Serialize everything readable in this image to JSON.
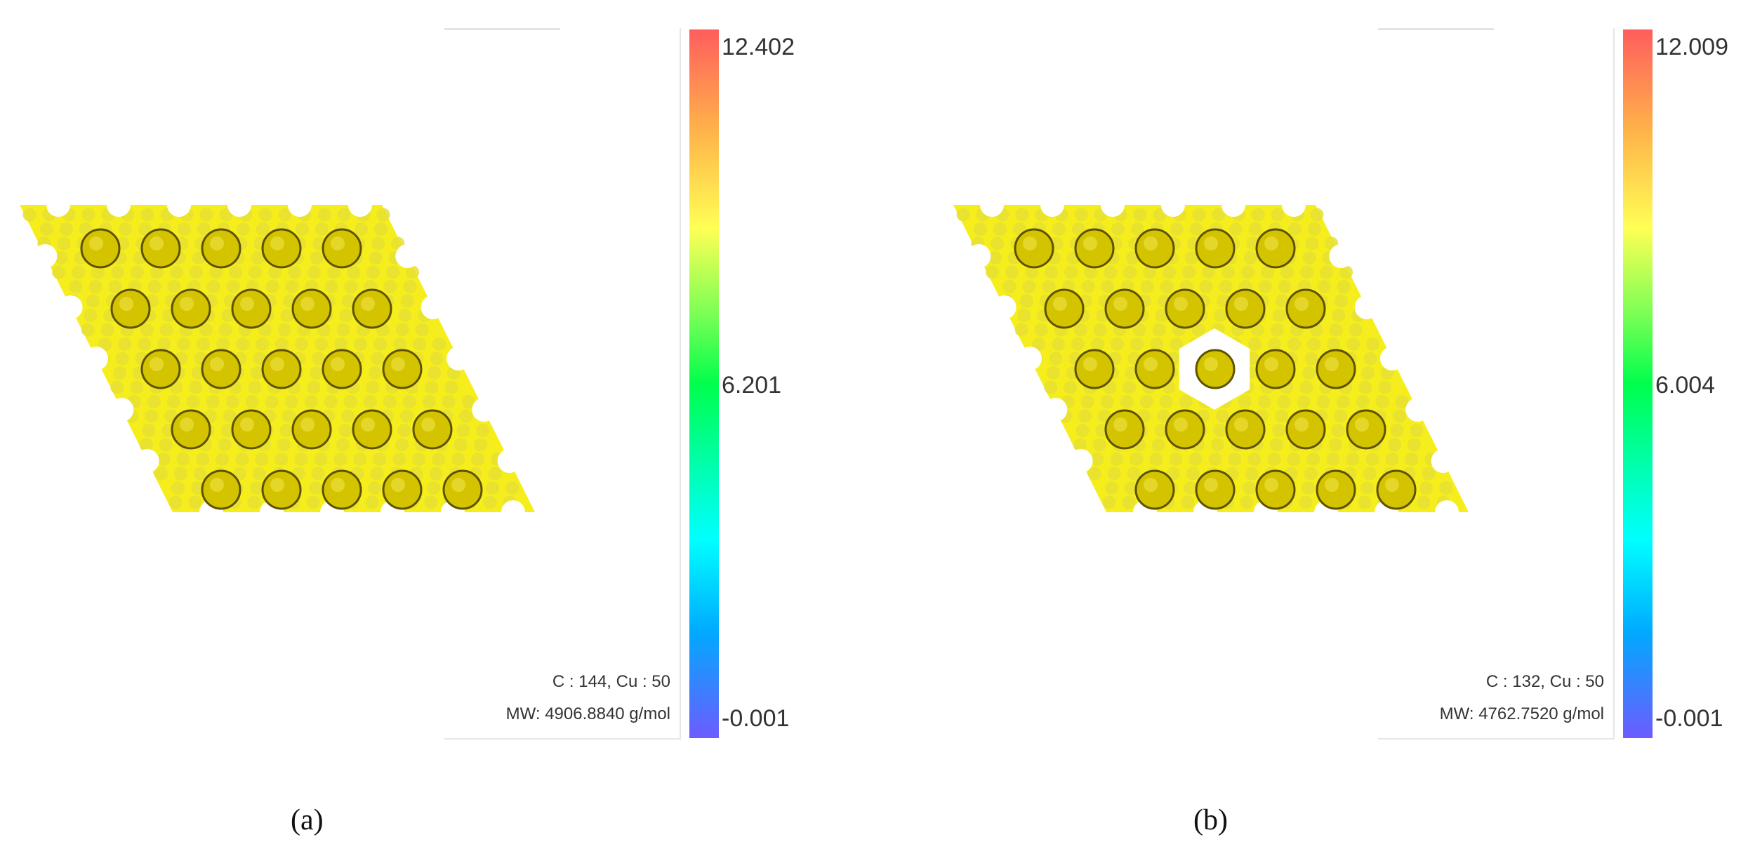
{
  "panels": [
    {
      "id": "a",
      "caption": "(a)",
      "composition": "C : 144, Cu : 50",
      "molecular_weight": "MW: 4906.8840 g/mol",
      "colorbar": {
        "max": "12.402",
        "mid": "6.201",
        "min": "-0.001"
      },
      "defect": false
    },
    {
      "id": "b",
      "caption": "(b)",
      "composition": "C : 132, Cu : 50",
      "molecular_weight": "MW: 4762.7520 g/mol",
      "colorbar": {
        "max": "12.009",
        "mid": "6.004",
        "min": "-0.001"
      },
      "defect": true
    }
  ],
  "colors": {
    "lattice_fill": "#f5ee1c",
    "small_atom": "#e6df32",
    "large_atom": "#d4c400",
    "large_atom_edge": "#5e5200",
    "colorbar_top": "#ff5d5d",
    "colorbar_middle": "#00ff4c",
    "colorbar_bottom": "#6d5cff"
  }
}
